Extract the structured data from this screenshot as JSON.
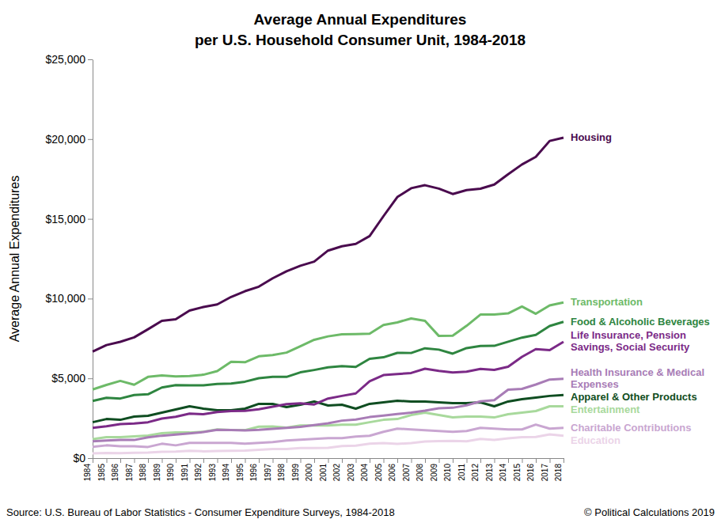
{
  "chart_data": {
    "type": "line",
    "title": "Average Annual Expenditures",
    "subtitle": "per U.S. Household Consumer Unit, 1984-2018",
    "y_label": "Average Annual Expenditures",
    "annotations": [
      "Source: U.S. Bureau of Labor Statistics - Consumer Expenditure Surveys, 1984-2018",
      "© Political Calculations 2019"
    ],
    "categories": [
      "1984",
      "1985",
      "1986",
      "1987",
      "1988",
      "1989",
      "1990",
      "1991",
      "1992",
      "1993",
      "1994",
      "1995",
      "1996",
      "1997",
      "1998",
      "1999",
      "2000",
      "2001",
      "2002",
      "2003",
      "2004",
      "2005",
      "2006",
      "2007",
      "2008",
      "2009",
      "2010",
      "2011",
      "2012",
      "2013",
      "2014",
      "2015",
      "2016",
      "2017",
      "2018"
    ],
    "ylim": [
      0,
      25000
    ],
    "yticks": [
      {
        "value": 0,
        "label": "$0"
      },
      {
        "value": 5000,
        "label": "$5,000"
      },
      {
        "value": 10000,
        "label": "$10,000"
      },
      {
        "value": 15000,
        "label": "$15,000"
      },
      {
        "value": 20000,
        "label": "$20,000"
      },
      {
        "value": 25000,
        "label": "$25,000"
      }
    ],
    "grid": false,
    "series": [
      {
        "name": "Housing",
        "color": "#4a0b4e",
        "values": [
          6674,
          7087,
          7292,
          7569,
          8079,
          8609,
          8703,
          9252,
          9477,
          9636,
          10106,
          10465,
          10747,
          11272,
          11713,
          12057,
          12319,
          13011,
          13283,
          13432,
          13918,
          15167,
          16366,
          16920,
          17109,
          16895,
          16557,
          16803,
          16887,
          17148,
          17798,
          18409,
          18886,
          19884,
          20091
        ]
      },
      {
        "name": "Transportation",
        "color": "#6dba68",
        "values": [
          4304,
          4587,
          4842,
          4600,
          5093,
          5187,
          5120,
          5151,
          5228,
          5453,
          6044,
          6014,
          6382,
          6457,
          6616,
          7011,
          7417,
          7633,
          7759,
          7781,
          7801,
          8344,
          8508,
          8758,
          8604,
          7658,
          7677,
          8293,
          8998,
          9004,
          9073,
          9503,
          9049,
          9576,
          9761
        ]
      },
      {
        "name": "Food & Alcoholic Beverages",
        "color": "#2e8540",
        "values": [
          3585,
          3783,
          3738,
          3958,
          4004,
          4427,
          4571,
          4565,
          4565,
          4653,
          4674,
          4792,
          5011,
          5091,
          5094,
          5377,
          5525,
          5690,
          5767,
          5720,
          6226,
          6321,
          6599,
          6591,
          6886,
          6802,
          6549,
          6899,
          7030,
          7040,
          7296,
          7556,
          7728,
          8286,
          8542
        ]
      },
      {
        "name": "Life Insurance, Pension Savings, Social Security",
        "color": "#7b2a87",
        "values": [
          1897,
          2000,
          2137,
          2175,
          2249,
          2483,
          2592,
          2787,
          2750,
          2889,
          2957,
          2967,
          3060,
          3223,
          3381,
          3436,
          3365,
          3737,
          3899,
          4055,
          4823,
          5204,
          5270,
          5336,
          5605,
          5471,
          5373,
          5424,
          5591,
          5528,
          5726,
          6349,
          6831,
          6771,
          7296
        ]
      },
      {
        "name": "Health Insurance & Medical Expenses",
        "color": "#a87cb6",
        "values": [
          1049,
          1108,
          1135,
          1135,
          1298,
          1407,
          1480,
          1554,
          1634,
          1776,
          1755,
          1732,
          1770,
          1841,
          1903,
          1959,
          2066,
          2182,
          2350,
          2416,
          2574,
          2664,
          2766,
          2853,
          2976,
          3126,
          3157,
          3313,
          3556,
          3631,
          4290,
          4342,
          4612,
          4928,
          4968
        ]
      },
      {
        "name": "Apparel & Other Products",
        "color": "#0f4d21",
        "values": [
          2250,
          2450,
          2400,
          2600,
          2650,
          2850,
          3050,
          3250,
          3100,
          3000,
          3000,
          3100,
          3400,
          3400,
          3200,
          3350,
          3550,
          3300,
          3350,
          3100,
          3400,
          3500,
          3600,
          3550,
          3550,
          3500,
          3450,
          3450,
          3500,
          3250,
          3550,
          3700,
          3800,
          3900,
          3950
        ]
      },
      {
        "name": "Entertainment",
        "color": "#a8d99c",
        "values": [
          1187,
          1311,
          1311,
          1363,
          1415,
          1560,
          1610,
          1606,
          1655,
          1794,
          1755,
          1755,
          1975,
          1980,
          1910,
          2050,
          2050,
          2050,
          2100,
          2100,
          2250,
          2400,
          2450,
          2700,
          2850,
          2700,
          2550,
          2600,
          2600,
          2550,
          2750,
          2850,
          2950,
          3250,
          3250
        ]
      },
      {
        "name": "Charitable Contributions",
        "color": "#c9a6d1",
        "values": [
          706,
          800,
          750,
          750,
          700,
          900,
          800,
          950,
          950,
          950,
          950,
          900,
          950,
          1000,
          1100,
          1150,
          1200,
          1250,
          1250,
          1350,
          1400,
          1650,
          1850,
          1800,
          1750,
          1700,
          1650,
          1700,
          1900,
          1850,
          1800,
          1800,
          2100,
          1850,
          1900
        ]
      },
      {
        "name": "Education",
        "color": "#ebd4e8",
        "values": [
          303,
          320,
          315,
          340,
          342,
          402,
          406,
          463,
          427,
          445,
          460,
          471,
          524,
          571,
          571,
          635,
          632,
          648,
          752,
          783,
          905,
          940,
          888,
          945,
          1046,
          1068,
          1074,
          1051,
          1207,
          1138,
          1236,
          1315,
          1329,
          1491,
          1407
        ]
      }
    ]
  }
}
